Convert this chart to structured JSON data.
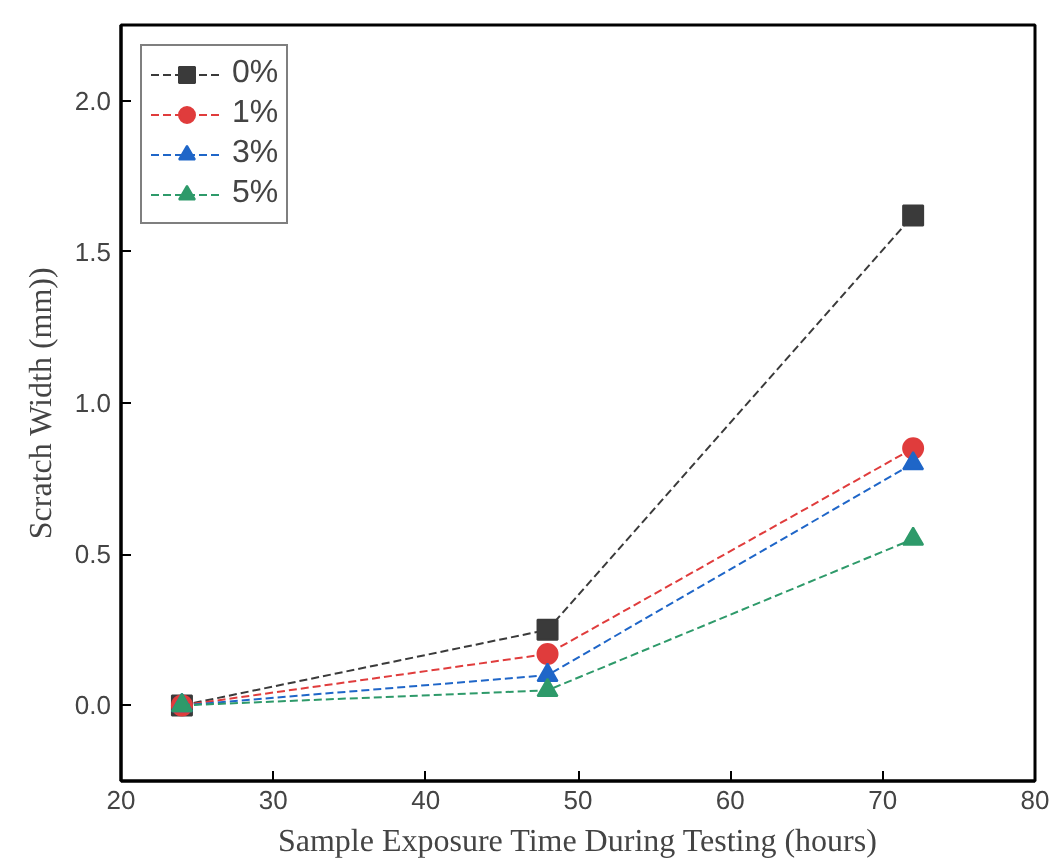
{
  "chart_data": {
    "type": "line",
    "xlabel": "Sample Exposure Time During Testing (hours)",
    "ylabel": "Scratch Width (mm))",
    "x": [
      24,
      48,
      72
    ],
    "series": [
      {
        "name": "0%",
        "color": "#3a3a3a",
        "marker": "square",
        "values": [
          0,
          0.25,
          1.62
        ]
      },
      {
        "name": "1%",
        "color": "#e03c3c",
        "marker": "circle",
        "values": [
          0,
          0.17,
          0.85
        ]
      },
      {
        "name": "3%",
        "color": "#1f66c8",
        "marker": "triangle",
        "values": [
          0,
          0.1,
          0.8
        ]
      },
      {
        "name": "5%",
        "color": "#2e9a6a",
        "marker": "triangle",
        "values": [
          0,
          0.05,
          0.55
        ]
      }
    ],
    "xlim": [
      20,
      80
    ],
    "xticks": [
      20,
      30,
      40,
      50,
      60,
      70,
      80
    ],
    "ylim": [
      -0.25,
      2.25
    ],
    "yticks": [
      {
        "value": 0,
        "label": "0.0"
      },
      {
        "value": 0.5,
        "label": "0.5"
      },
      {
        "value": 1,
        "label": "1.0"
      },
      {
        "value": 1.5,
        "label": "1.5"
      },
      {
        "value": 2,
        "label": "2.0"
      }
    ],
    "line_style": "dashed",
    "grid": false,
    "legend": "top left"
  }
}
